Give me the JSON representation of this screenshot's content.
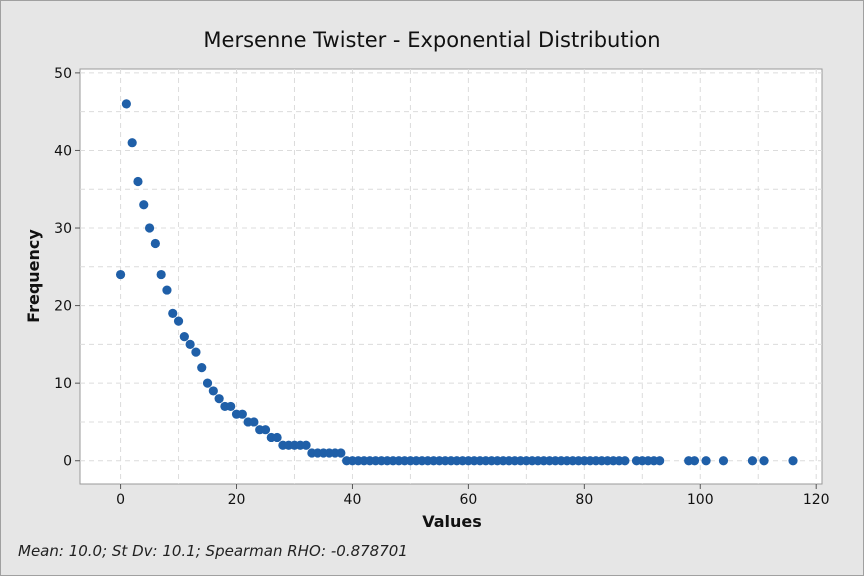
{
  "chart_data": {
    "type": "scatter",
    "title": "Mersenne Twister - Exponential Distribution",
    "xlabel": "Values",
    "ylabel": "Frequency",
    "xlim": [
      -7,
      121
    ],
    "ylim": [
      -3,
      50.5
    ],
    "xticks": [
      0,
      20,
      40,
      60,
      80,
      100,
      120
    ],
    "yticks": [
      0,
      10,
      20,
      30,
      40,
      50
    ],
    "grid": true,
    "marker_color": "#1f5fa8",
    "series": [
      {
        "x": [
          0,
          1,
          2,
          3,
          4,
          5,
          6,
          7,
          8,
          9,
          10,
          11,
          12,
          13,
          14,
          15,
          16,
          17,
          18,
          19,
          20,
          21,
          22,
          23,
          24,
          25,
          26,
          27,
          28,
          29,
          30,
          31,
          32,
          33,
          34,
          35,
          36,
          37,
          38,
          39,
          40,
          41,
          42,
          43,
          44,
          45,
          46,
          47,
          48,
          49,
          50,
          51,
          52,
          53,
          54,
          55,
          56,
          57,
          58,
          59,
          60,
          61,
          62,
          63,
          64,
          65,
          66,
          67,
          68,
          69,
          70,
          71,
          72,
          73,
          74,
          75,
          76,
          77,
          78,
          79,
          80,
          81,
          82,
          83,
          84,
          85,
          86,
          87,
          89,
          90,
          91,
          92,
          93,
          98,
          99,
          101,
          104,
          109,
          111,
          116
        ],
        "y": [
          24,
          46,
          41,
          36,
          33,
          30,
          28,
          24,
          22,
          19,
          18,
          16,
          15,
          14,
          12,
          10,
          9,
          8,
          7,
          7,
          6,
          6,
          5,
          5,
          4,
          4,
          3,
          3,
          2,
          2,
          2,
          2,
          2,
          1,
          1,
          1,
          1,
          1,
          1,
          0,
          0,
          0,
          0,
          0,
          0,
          0,
          0,
          0,
          0,
          0,
          0,
          0,
          0,
          0,
          0,
          0,
          0,
          0,
          0,
          0,
          0,
          0,
          0,
          0,
          0,
          0,
          0,
          0,
          0,
          0,
          0,
          0,
          0,
          0,
          0,
          0,
          0,
          0,
          0,
          0,
          0,
          0,
          0,
          0,
          0,
          0,
          0,
          0,
          0,
          0,
          0,
          0,
          0,
          0,
          0,
          0,
          0,
          0,
          0,
          0
        ]
      }
    ]
  },
  "footer": {
    "stats": "Mean: 10.0; St Dv: 10.1; Spearman RHO: -0.878701"
  }
}
